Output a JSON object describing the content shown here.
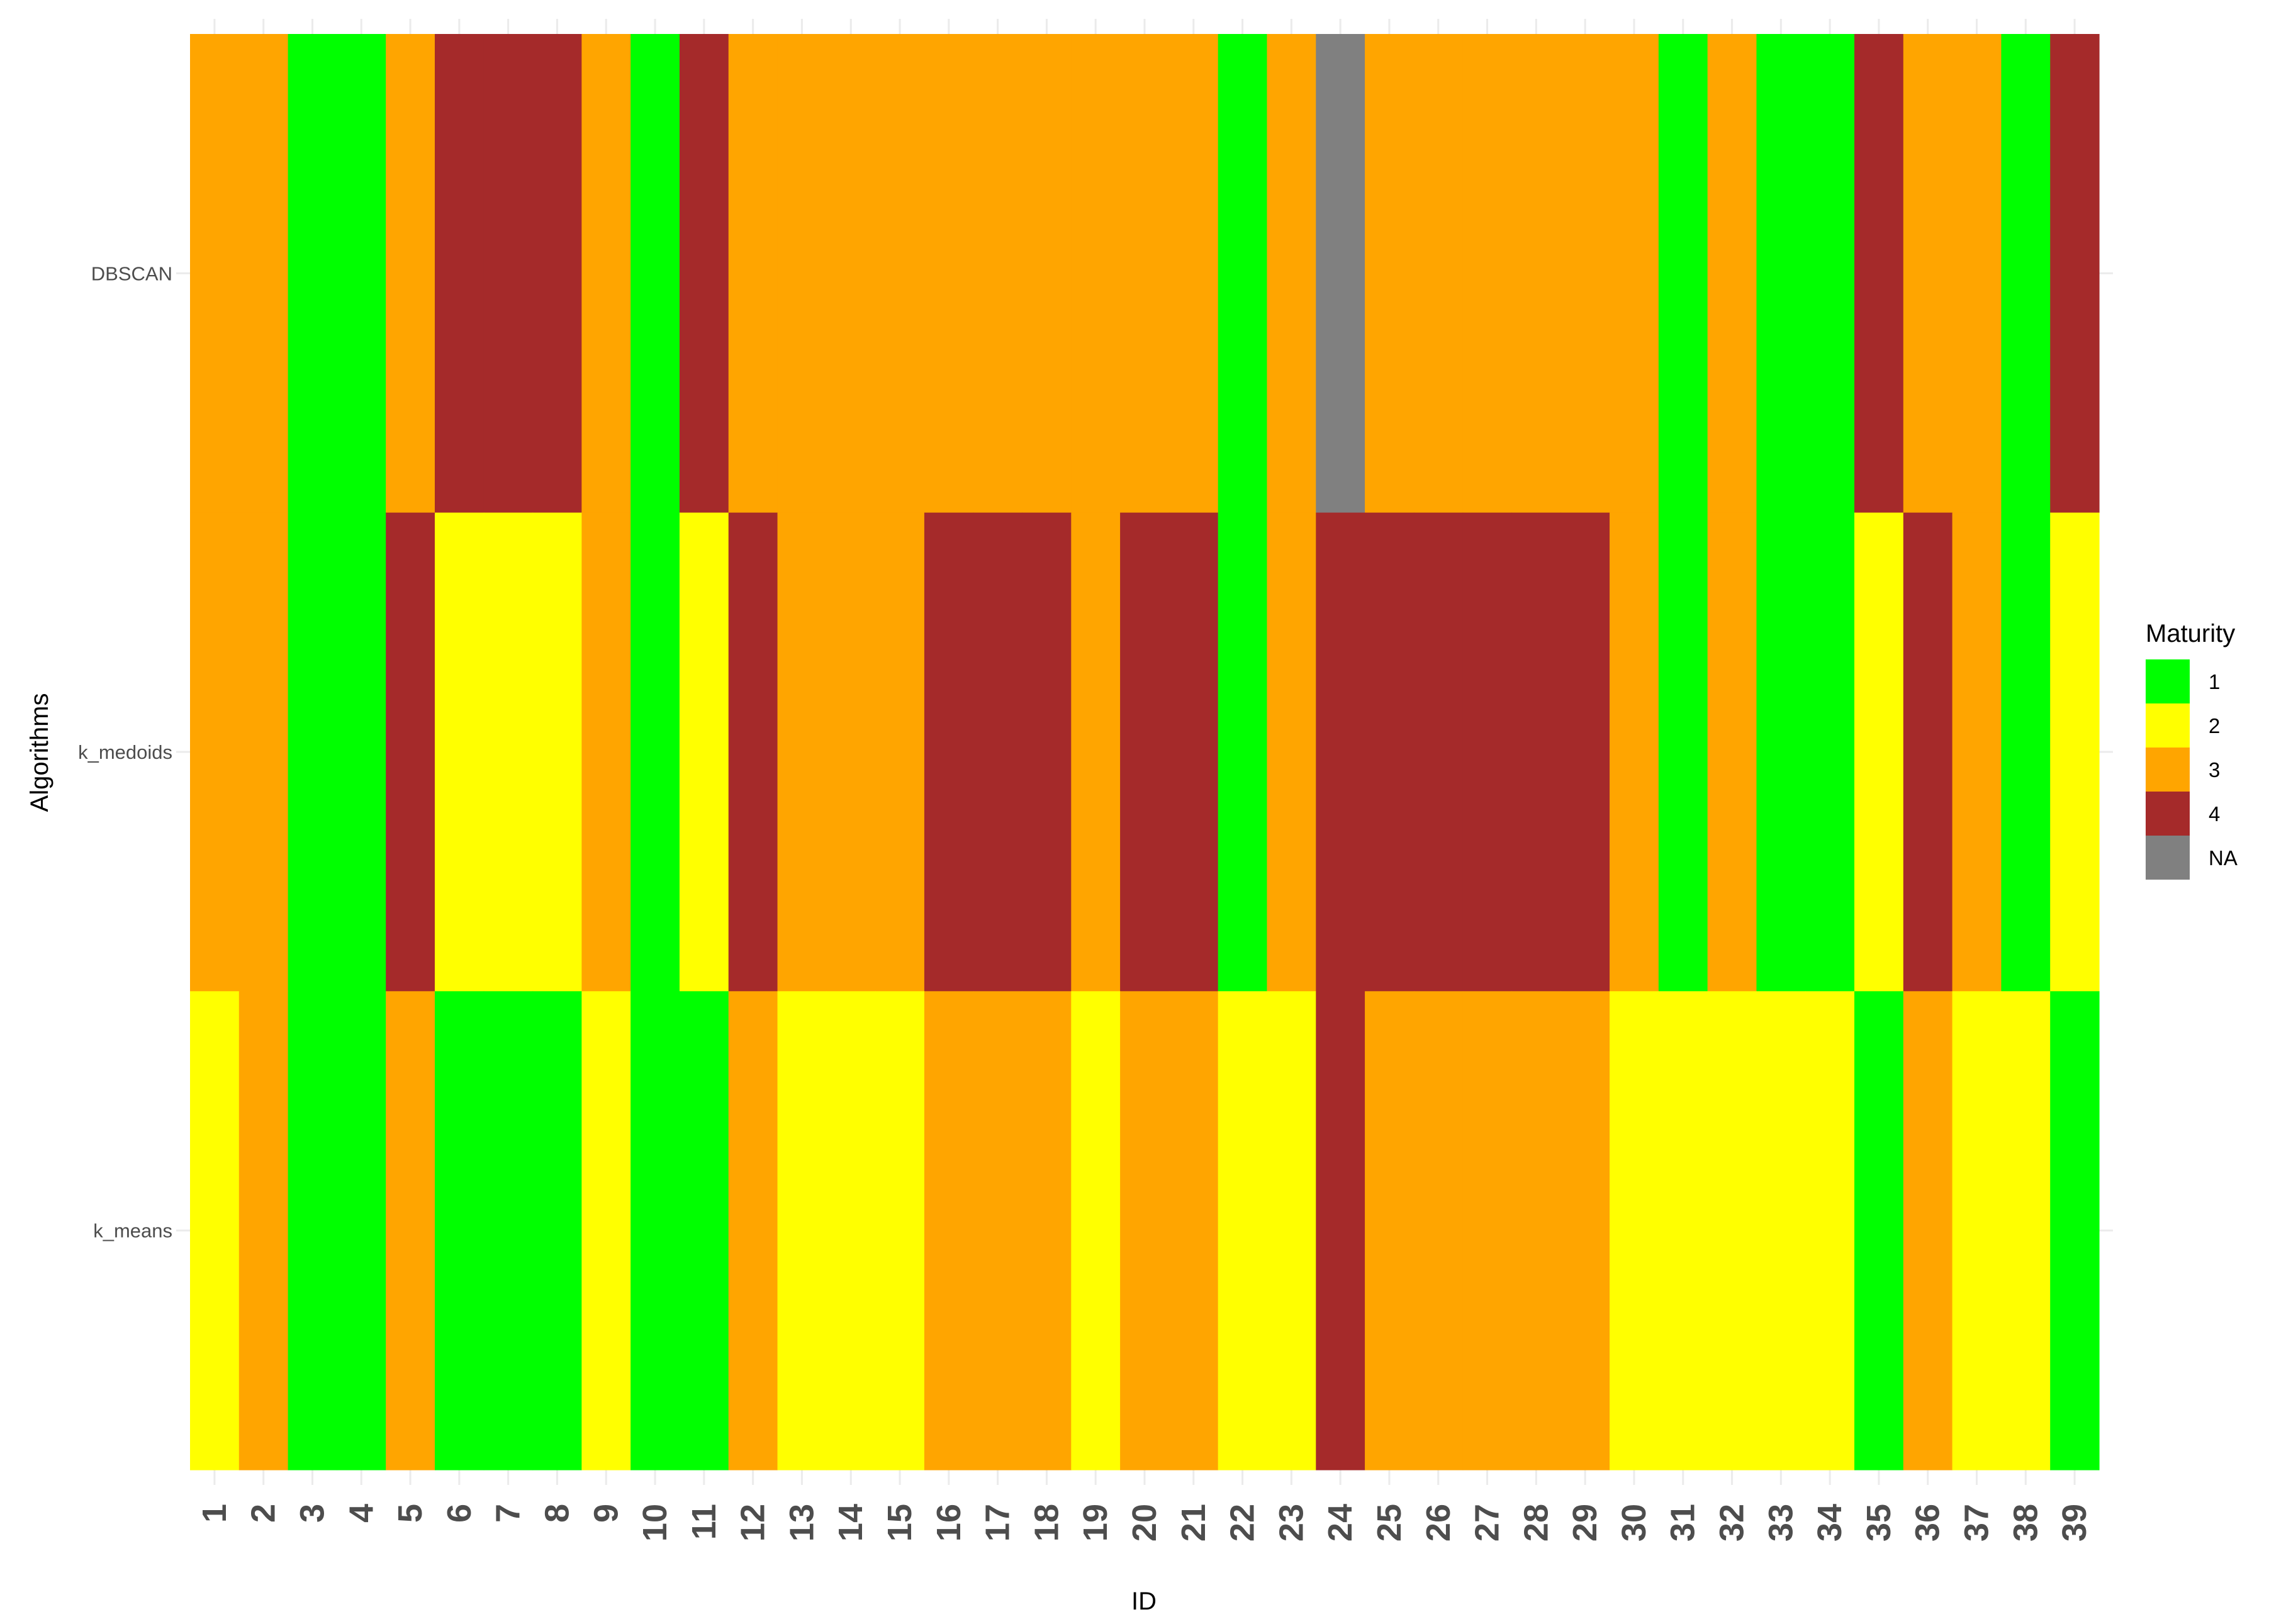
{
  "chart_data": {
    "type": "heatmap",
    "title": "",
    "xlabel": "ID",
    "ylabel": "Algorithms",
    "x": [
      "1",
      "2",
      "3",
      "4",
      "5",
      "6",
      "7",
      "8",
      "9",
      "10",
      "11",
      "12",
      "13",
      "14",
      "15",
      "16",
      "17",
      "18",
      "19",
      "20",
      "21",
      "22",
      "23",
      "24",
      "25",
      "26",
      "27",
      "28",
      "29",
      "30",
      "31",
      "32",
      "33",
      "34",
      "35",
      "36",
      "37",
      "38",
      "39"
    ],
    "y": [
      "DBSCAN",
      "k_medoids",
      "k_means"
    ],
    "values": [
      [
        3,
        3,
        1,
        1,
        3,
        4,
        4,
        4,
        3,
        1,
        4,
        3,
        3,
        3,
        3,
        3,
        3,
        3,
        3,
        3,
        3,
        1,
        3,
        null,
        3,
        3,
        3,
        3,
        3,
        3,
        1,
        3,
        1,
        1,
        4,
        3,
        3,
        1,
        4
      ],
      [
        3,
        3,
        1,
        1,
        4,
        2,
        2,
        2,
        3,
        1,
        2,
        4,
        3,
        3,
        3,
        4,
        4,
        4,
        3,
        4,
        4,
        1,
        3,
        4,
        4,
        4,
        4,
        4,
        4,
        3,
        1,
        3,
        1,
        1,
        2,
        4,
        3,
        1,
        2
      ],
      [
        2,
        3,
        1,
        1,
        3,
        1,
        1,
        1,
        2,
        1,
        1,
        3,
        2,
        2,
        2,
        3,
        3,
        3,
        2,
        3,
        3,
        2,
        2,
        4,
        3,
        3,
        3,
        3,
        3,
        2,
        2,
        2,
        2,
        2,
        1,
        3,
        2,
        2,
        1
      ]
    ],
    "legend": {
      "title": "Maturity",
      "position": "right",
      "entries": [
        {
          "label": "1",
          "value": 1,
          "color": "#00ff00"
        },
        {
          "label": "2",
          "value": 2,
          "color": "#ffff00"
        },
        {
          "label": "3",
          "value": 3,
          "color": "#ffa500"
        },
        {
          "label": "4",
          "value": 4,
          "color": "#a52a2a"
        },
        {
          "label": "NA",
          "value": null,
          "color": "#808080"
        }
      ]
    },
    "grid": true
  }
}
